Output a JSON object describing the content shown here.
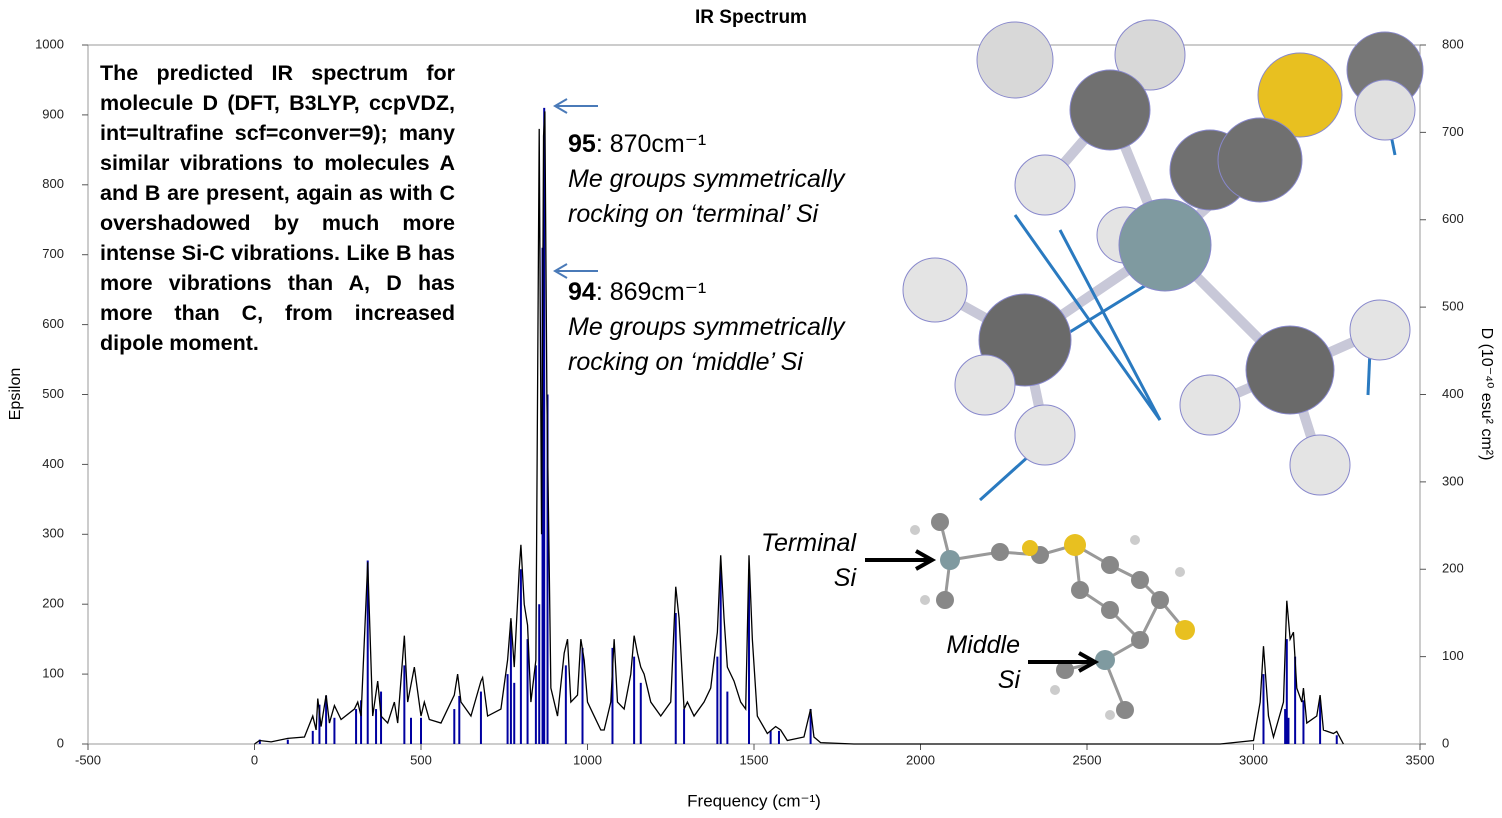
{
  "chart_data": {
    "type": "line",
    "title": "IR Spectrum",
    "x_label": "Frequency (cm⁻¹)",
    "y_label": "Epsilon",
    "y2_label": "D (10⁻⁴⁰ esu² cm²)",
    "xlim": [
      -500,
      3500
    ],
    "xticks": [
      -500,
      0,
      500,
      1000,
      1500,
      2000,
      2500,
      3000,
      3500
    ],
    "ylim": [
      0,
      1000
    ],
    "yticks": [
      0,
      100,
      200,
      300,
      400,
      500,
      600,
      700,
      800,
      900,
      1000
    ],
    "y2lim": [
      0,
      800
    ],
    "y2ticks": [
      0,
      100,
      200,
      300,
      400,
      500,
      600,
      700,
      800
    ],
    "series": [
      {
        "type": "line",
        "color": "#000000",
        "x": [
          0,
          15,
          50,
          100,
          150,
          175,
          185,
          190,
          200,
          215,
          225,
          240,
          260,
          300,
          310,
          320,
          340,
          355,
          370,
          380,
          400,
          420,
          430,
          450,
          460,
          480,
          500,
          510,
          525,
          560,
          600,
          610,
          620,
          650,
          680,
          685,
          700,
          740,
          760,
          770,
          780,
          795,
          800,
          810,
          820,
          830,
          845,
          855,
          862,
          868,
          872,
          878,
          890,
          910,
          930,
          940,
          950,
          970,
          980,
          990,
          1000,
          1020,
          1040,
          1050,
          1070,
          1080,
          1090,
          1110,
          1130,
          1140,
          1150,
          1160,
          1170,
          1180,
          1190,
          1220,
          1250,
          1265,
          1275,
          1290,
          1300,
          1320,
          1350,
          1370,
          1390,
          1400,
          1410,
          1420,
          1440,
          1460,
          1475,
          1485,
          1495,
          1510,
          1540,
          1565,
          1580,
          1600,
          1650,
          1670,
          1680,
          1700,
          1800,
          2000,
          2500,
          2900,
          3000,
          3020,
          3030,
          3045,
          3060,
          3090,
          3100,
          3110,
          3120,
          3130,
          3145,
          3150,
          3160,
          3190,
          3200,
          3210,
          3240,
          3250,
          3270
        ],
        "values": [
          0,
          5,
          3,
          8,
          10,
          40,
          20,
          65,
          25,
          70,
          30,
          55,
          35,
          50,
          60,
          40,
          260,
          40,
          90,
          40,
          30,
          60,
          30,
          155,
          60,
          110,
          40,
          60,
          35,
          30,
          70,
          100,
          60,
          40,
          90,
          95,
          40,
          50,
          120,
          180,
          110,
          250,
          285,
          200,
          170,
          60,
          120,
          880,
          300,
          870,
          905,
          500,
          80,
          40,
          130,
          150,
          60,
          70,
          150,
          120,
          60,
          40,
          20,
          20,
          60,
          150,
          60,
          50,
          100,
          155,
          130,
          110,
          100,
          80,
          60,
          40,
          60,
          225,
          180,
          50,
          60,
          40,
          60,
          80,
          160,
          270,
          180,
          110,
          90,
          60,
          50,
          270,
          150,
          40,
          15,
          25,
          20,
          5,
          10,
          50,
          10,
          2,
          0,
          0,
          0,
          0,
          5,
          60,
          140,
          40,
          10,
          60,
          205,
          150,
          160,
          80,
          60,
          80,
          30,
          40,
          70,
          20,
          15,
          18,
          0
        ]
      },
      {
        "type": "stem",
        "color": "#0000a0",
        "axis": "y2",
        "x": [
          16,
          100,
          175,
          195,
          215,
          240,
          305,
          320,
          340,
          365,
          380,
          450,
          470,
          500,
          600,
          615,
          680,
          760,
          770,
          780,
          800,
          820,
          845,
          855,
          865,
          870,
          880,
          935,
          985,
          1075,
          1140,
          1160,
          1265,
          1290,
          1390,
          1400,
          1420,
          1485,
          1550,
          1575,
          1670,
          3030,
          3095,
          3100,
          3105,
          3125,
          3150,
          3200,
          3250
        ],
        "values": [
          5,
          5,
          15,
          45,
          55,
          30,
          40,
          50,
          210,
          40,
          60,
          90,
          30,
          30,
          40,
          55,
          60,
          80,
          140,
          70,
          200,
          120,
          90,
          160,
          568,
          728,
          400,
          90,
          110,
          110,
          100,
          70,
          150,
          40,
          100,
          200,
          60,
          200,
          15,
          15,
          40,
          80,
          40,
          120,
          30,
          100,
          50,
          50,
          10
        ]
      }
    ],
    "annotations": {
      "description": "The predicted IR spectrum for molecule D (DFT, B3LYP, ccpVDZ, int=ultrafine scf=conver=9);  many similar vibrations to molecules A and B are present, again as with C overshadowed by much more intense Si-C vibrations. Like B has more vibrations than A, D has more than C, from increased dipole moment.",
      "peak_95": {
        "number": "95",
        "label": ": 870cm⁻¹",
        "lines": [
          "Me groups symmetrically",
          "rocking on ‘terminal’ Si"
        ]
      },
      "peak_94": {
        "number": "94",
        "label": ": 869cm⁻¹",
        "lines": [
          "Me groups symmetrically",
          "rocking on ‘middle’ Si"
        ]
      },
      "terminal": [
        "Terminal",
        "Si"
      ],
      "middle": [
        "Middle",
        "Si"
      ]
    }
  }
}
